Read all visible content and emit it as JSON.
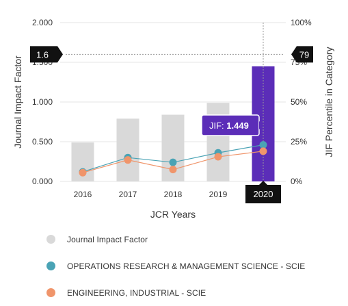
{
  "chart_data": {
    "type": "bar",
    "categories": [
      "2016",
      "2017",
      "2018",
      "2019",
      "2020"
    ],
    "series": [
      {
        "name": "Journal Impact Factor",
        "kind": "bar",
        "axis": "left",
        "values": [
          0.49,
          0.79,
          0.84,
          0.99,
          1.449
        ],
        "color": "#d9d9d9",
        "highlight_color": "#5b2db8"
      },
      {
        "name": "OPERATIONS RESEARCH & MANAGEMENT SCIENCE - SCIE",
        "kind": "line",
        "axis": "right",
        "values": [
          6,
          15,
          12,
          18,
          23
        ],
        "color": "#4aa3b5"
      },
      {
        "name": "ENGINEERING, INDUSTRIAL - SCIE",
        "kind": "line",
        "axis": "right",
        "values": [
          5.5,
          13.5,
          7.5,
          15.5,
          19
        ],
        "color": "#f0956b"
      }
    ],
    "xlabel": "JCR Years",
    "ylabel": "Journal Impact Factor",
    "y2label": "JIF Percentile in Category",
    "ylim": [
      0,
      2
    ],
    "y2lim": [
      0,
      100
    ],
    "yticks": [
      "0.000",
      "0.500",
      "1.000",
      "1.500",
      "2.000"
    ],
    "y2ticks": [
      "0%",
      "25%",
      "50%",
      "75%",
      "100%"
    ],
    "selected_category": "2020",
    "crosshair": {
      "y_value_label": "1.6",
      "y_value": 1.6,
      "y2_value_label": "79"
    },
    "tooltip": {
      "label": "JIF:",
      "value": "1.449"
    },
    "grid": true,
    "legend_position": "bottom"
  }
}
